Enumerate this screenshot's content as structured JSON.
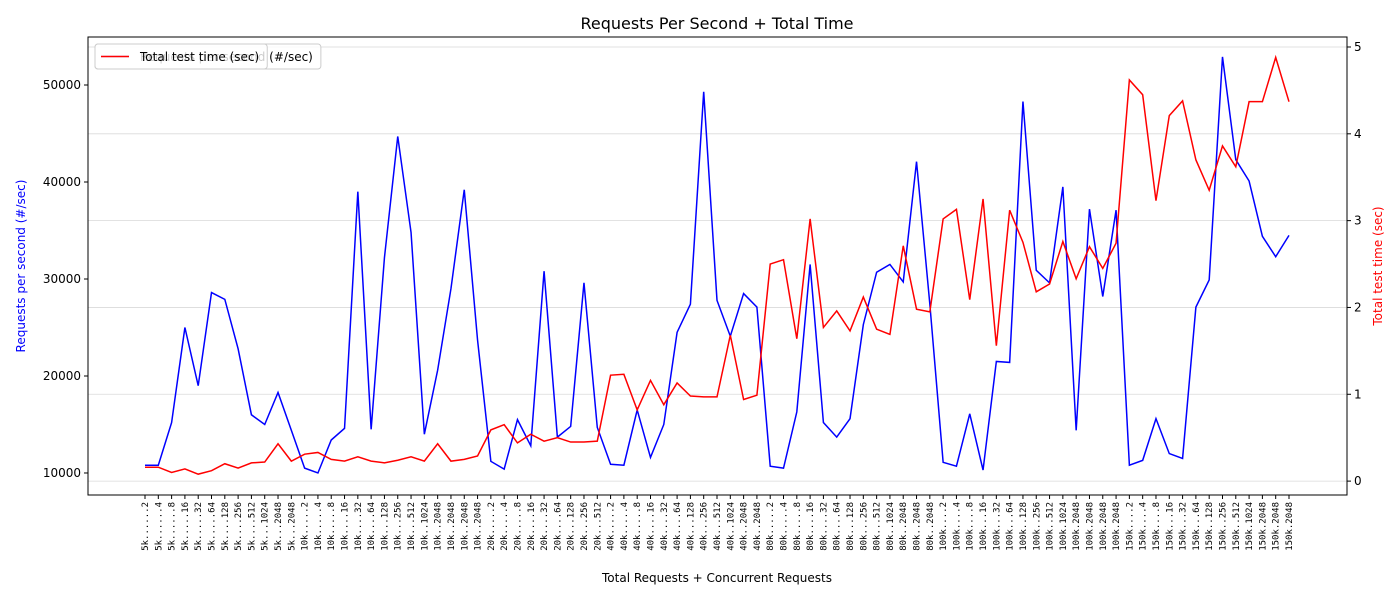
{
  "chart_data": {
    "type": "line",
    "title": "Requests Per Second + Total Time",
    "x_label": "Total Requests + Concurrent Requests",
    "y_label": "Requests per second (#/sec)",
    "y2_label": "Total test time (sec)",
    "categories": [
      "5k......2",
      "5k......4",
      "5k......8",
      "5k.....16",
      "5k.....32",
      "5k.....64",
      "5k....128",
      "5k....256",
      "5k....512",
      "5k...1024",
      "5k...2048",
      "5k...2048",
      "10k.....2",
      "10k.....4",
      "10k.....8",
      "10k....16",
      "10k....32",
      "10k....64",
      "10k...128",
      "10k...256",
      "10k...512",
      "10k..1024",
      "10k..2048",
      "10k..2048",
      "10k..2048",
      "10k..2048",
      "20k.....2",
      "20k.....4",
      "20k.....8",
      "20k....16",
      "20k....32",
      "20k....64",
      "20k...128",
      "20k...256",
      "20k...512",
      "40k.....2",
      "40k.....4",
      "40k.....8",
      "40k....16",
      "40k....32",
      "40k....64",
      "40k...128",
      "40k...256",
      "40k...512",
      "40k..1024",
      "40k..2048",
      "40k..2048",
      "80k.....2",
      "80k.....4",
      "80k.....8",
      "80k....16",
      "80k....32",
      "80k....64",
      "80k...128",
      "80k...256",
      "80k...512",
      "80k..1024",
      "80k..2048",
      "80k..2048",
      "80k..2048",
      "100k....2",
      "100k....4",
      "100k....8",
      "100k...16",
      "100k...32",
      "100k...64",
      "100k..128",
      "100k..256",
      "100k..512",
      "100k.1024",
      "100k.2048",
      "100k.2048",
      "100k.2048",
      "100k.2048",
      "150k....2",
      "150k....4",
      "150k....8",
      "150k...16",
      "150k...32",
      "150k...64",
      "150k..128",
      "150k..256",
      "150k..512",
      "150k.1024",
      "150k.2048",
      "150k.2048",
      "150k.2048"
    ],
    "series": [
      {
        "name": "Requests per second (#/sec)",
        "color": "#0000ff",
        "axis": "y",
        "values": [
          10800,
          10800,
          15200,
          25000,
          19000,
          28600,
          27900,
          22800,
          16000,
          15000,
          18300,
          14400,
          10500,
          10000,
          13400,
          14600,
          39000,
          14500,
          32200,
          44700,
          34800,
          14000,
          20600,
          29000,
          39200,
          23700,
          11200,
          10400,
          15500,
          12800,
          30800,
          13700,
          14800,
          29600,
          14700,
          10900,
          10800,
          16500,
          11600,
          15000,
          24500,
          27400,
          49300,
          27800,
          24100,
          28500,
          27100,
          10700,
          10500,
          16300,
          31500,
          15200,
          13700,
          15600,
          25300,
          30700,
          31500,
          29700,
          42100,
          27400,
          11100,
          10700,
          16100,
          10300,
          21500,
          21400,
          48300,
          30900,
          29600,
          39500,
          14400,
          37200,
          28200,
          37100,
          10800,
          11300,
          15600,
          12000,
          11500,
          27100,
          29900,
          52900,
          42300,
          40100,
          34400,
          32300,
          34500
        ]
      },
      {
        "name": "Total test time (sec)",
        "color": "#ff0000",
        "axis": "y2",
        "values": [
          0.16,
          0.16,
          0.1,
          0.14,
          0.08,
          0.12,
          0.2,
          0.15,
          0.21,
          0.22,
          0.43,
          0.23,
          0.31,
          0.33,
          0.25,
          0.23,
          0.28,
          0.23,
          0.21,
          0.24,
          0.28,
          0.23,
          0.43,
          0.23,
          0.25,
          0.29,
          0.59,
          0.65,
          0.44,
          0.54,
          0.46,
          0.5,
          0.45,
          0.45,
          0.46,
          1.22,
          1.23,
          0.82,
          1.16,
          0.88,
          1.13,
          0.98,
          0.97,
          0.97,
          1.68,
          0.94,
          0.99,
          2.5,
          2.55,
          1.64,
          3.02,
          1.77,
          1.96,
          1.73,
          2.12,
          1.75,
          1.69,
          2.71,
          1.98,
          1.95,
          3.02,
          3.13,
          2.09,
          3.25,
          1.56,
          3.12,
          2.75,
          2.18,
          2.27,
          2.76,
          2.33,
          2.7,
          2.45,
          2.74,
          4.62,
          4.45,
          3.23,
          4.21,
          4.38,
          3.7,
          3.35,
          3.86,
          3.62,
          4.37,
          4.37,
          4.88,
          4.37
        ]
      }
    ],
    "ylim": [
      7730,
      54950
    ],
    "yticks": [
      10000,
      20000,
      30000,
      40000,
      50000
    ],
    "y2lim": [
      -0.16,
      5.115
    ],
    "y2ticks": [
      0,
      1,
      2,
      3,
      4,
      5
    ],
    "grid": "y2",
    "legend": "upper left"
  }
}
